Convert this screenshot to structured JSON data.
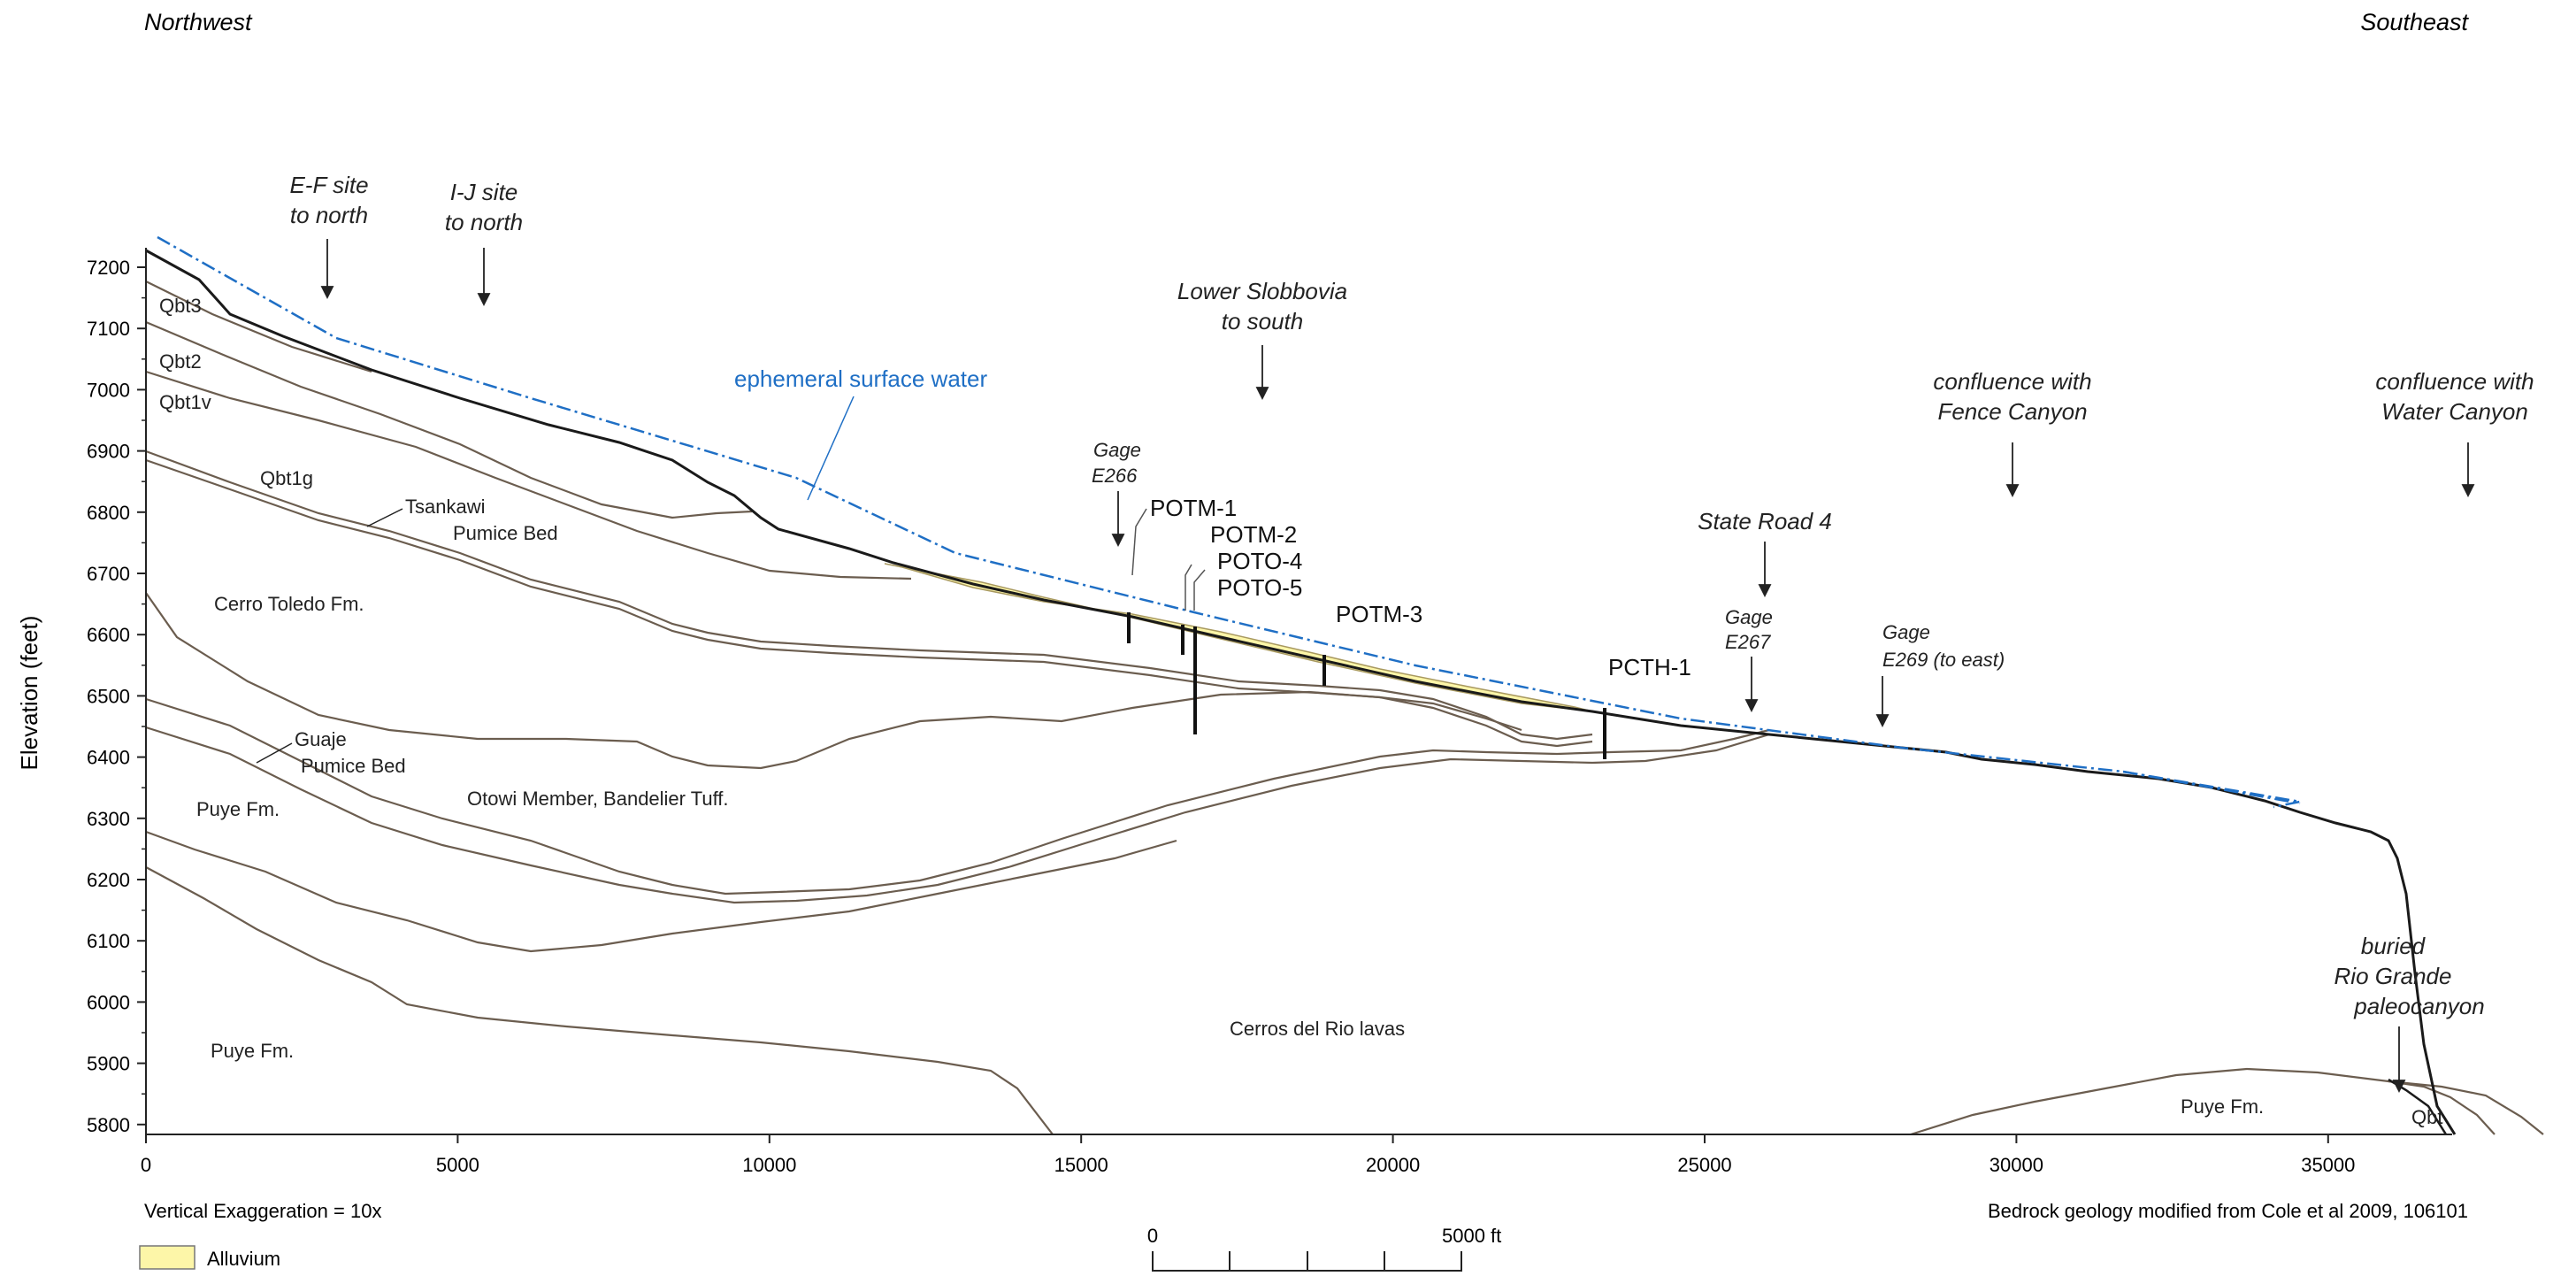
{
  "direction": {
    "left": "Northwest",
    "right": "Southeast"
  },
  "y_axis": {
    "label": "Elevation (feet)",
    "ticks": [
      "7200",
      "7100",
      "7000",
      "6900",
      "6800",
      "6700",
      "6600",
      "6500",
      "6400",
      "6300",
      "6200",
      "6100",
      "6000",
      "5900",
      "5800"
    ]
  },
  "x_axis": {
    "ticks": [
      "0",
      "5000",
      "10000",
      "15000",
      "20000",
      "25000",
      "30000",
      "35000"
    ]
  },
  "notes": {
    "exaggeration": "Vertical Exaggeration = 10x",
    "credit": "Bedrock geology modified from Cole et al 2009, 106101"
  },
  "legend": {
    "alluvium_label": "Alluvium",
    "alluvium_color": "#fdf6a8"
  },
  "scale_bar": {
    "start": "0",
    "end": "5000 ft"
  },
  "surface_water_label": "ephemeral surface water",
  "colors": {
    "surface_water": "#1f6fc5",
    "contact": "#6b5d4f",
    "ground": "#1a1a1a",
    "alluvium": "#fdf6a8"
  },
  "units": {
    "qbt3": "Qbt3",
    "qbt2": "Qbt2",
    "qbt1v": "Qbt1v",
    "qbt1g": "Qbt1g",
    "tsankawi_1": "Tsankawi",
    "tsankawi_2": "Pumice Bed",
    "cerro_toledo": "Cerro Toledo Fm.",
    "guaje_1": "Guaje",
    "guaje_2": "Pumice Bed",
    "puye_upper": "Puye Fm.",
    "otowi": "Otowi Member, Bandelier Tuff.",
    "puye_lower": "Puye Fm.",
    "cerros_del_rio": "Cerros del Rio lavas",
    "puye_right": "Puye Fm.",
    "qbt": "Qbt"
  },
  "annotations": {
    "ef_site": [
      "E-F site",
      "to north"
    ],
    "ij_site": [
      "I-J site",
      "to north"
    ],
    "lower_slobbovia": [
      "Lower Slobbovia",
      "to south"
    ],
    "gage_e266": [
      "Gage",
      "E266"
    ],
    "state_road": "State Road 4",
    "gage_e267": [
      "Gage",
      "E267"
    ],
    "gage_e269": [
      "Gage",
      "E269 (to east)"
    ],
    "fence_canyon": [
      "confluence with",
      "Fence Canyon"
    ],
    "water_canyon": [
      "confluence with",
      "Water Canyon"
    ],
    "rio_grande": [
      "buried",
      "Rio Grande",
      "paleocanyon"
    ]
  },
  "wells": {
    "potm1": "POTM-1",
    "potm2": "POTM-2",
    "poto4": "POTO-4",
    "poto5": "POTO-5",
    "potm3": "POTM-3",
    "pcth1": "PCTH-1"
  }
}
